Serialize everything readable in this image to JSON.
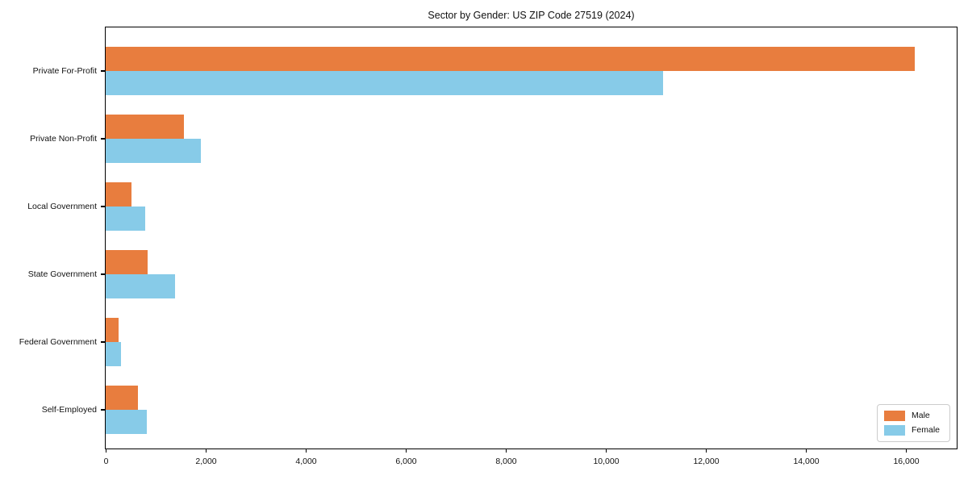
{
  "chart_data": {
    "type": "bar",
    "orientation": "horizontal",
    "title": "Sector by Gender: US ZIP Code 27519 (2024)",
    "categories": [
      "Private For-Profit",
      "Private Non-Profit",
      "Local Government",
      "State Government",
      "Federal Government",
      "Self-Employed"
    ],
    "series": [
      {
        "name": "Male",
        "color": "#e87d3e",
        "values": [
          16180,
          1560,
          510,
          840,
          260,
          640
        ]
      },
      {
        "name": "Female",
        "color": "#87cbe8",
        "values": [
          11150,
          1910,
          790,
          1380,
          300,
          820
        ]
      }
    ],
    "xlabel": "",
    "ylabel": "",
    "xlim": [
      0,
      17000
    ],
    "x_ticks": [
      {
        "value": 0,
        "label": "0"
      },
      {
        "value": 2000,
        "label": "2,000"
      },
      {
        "value": 4000,
        "label": "4,000"
      },
      {
        "value": 6000,
        "label": "6,000"
      },
      {
        "value": 8000,
        "label": "8,000"
      },
      {
        "value": 10000,
        "label": "10,000"
      },
      {
        "value": 12000,
        "label": "12,000"
      },
      {
        "value": 14000,
        "label": "14,000"
      },
      {
        "value": 16000,
        "label": "16,000"
      }
    ],
    "grid": false,
    "legend_position": "lower right"
  },
  "legend": {
    "items": [
      {
        "label": "Male"
      },
      {
        "label": "Female"
      }
    ]
  },
  "colors": {
    "male": "#e87d3e",
    "female": "#87cbe8",
    "axis": "#000000",
    "legend_border": "#cccccc",
    "background": "#ffffff"
  }
}
